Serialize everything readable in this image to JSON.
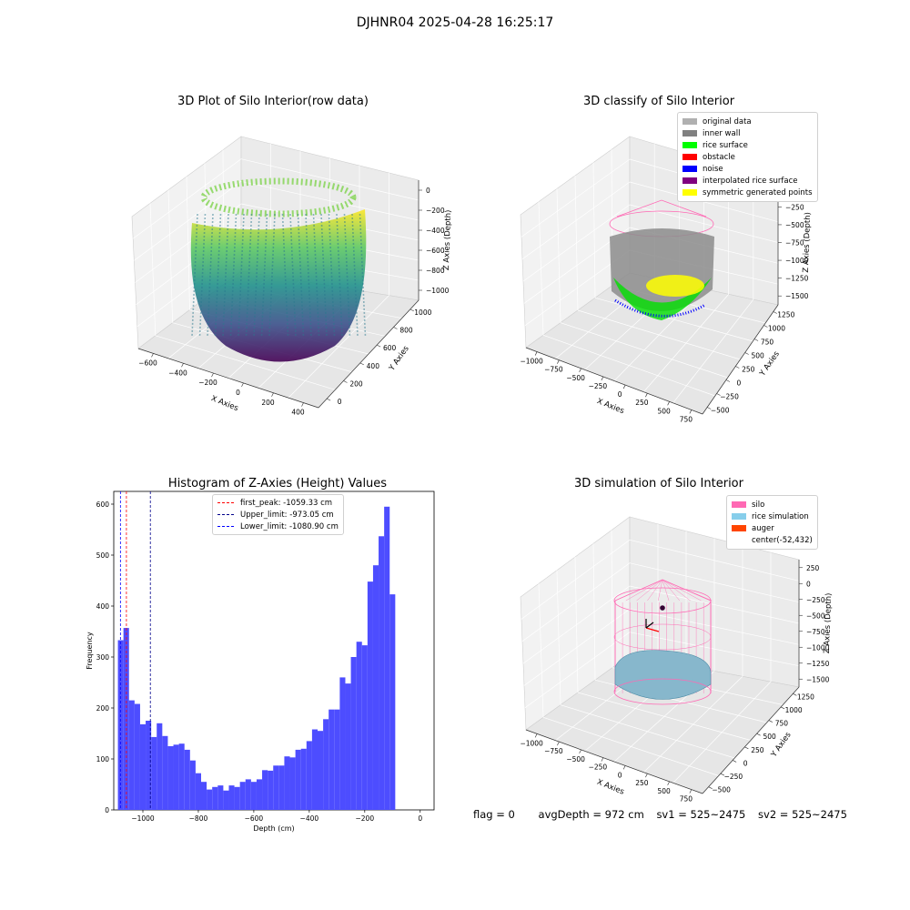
{
  "suptitle": "DJHNR04 2025-04-28 16:25:17",
  "footer": {
    "flag": "flag = 0",
    "avg_depth": "avgDepth = 972 cm",
    "sv1": "sv1 = 525~2475",
    "sv2": "sv2 = 525~2475"
  },
  "chart_data": [
    {
      "type": "scatter",
      "projection": "3d",
      "title": "3D Plot of Silo Interior(row data)",
      "xlabel": "X Axies",
      "ylabel": "Y Axies",
      "zlabel": "Z Axies (Depth)",
      "x_ticks": [
        "−600",
        "−400",
        "−200",
        "0",
        "200",
        "400"
      ],
      "y_ticks": [
        "0",
        "200",
        "400",
        "600",
        "800",
        "1000"
      ],
      "z_ticks": [
        "0",
        "−200",
        "−400",
        "−600",
        "−800",
        "−1000"
      ],
      "colormap": "viridis"
    },
    {
      "type": "scatter",
      "projection": "3d",
      "title": "3D classify of Silo Interior",
      "xlabel": "X Axies",
      "ylabel": "Y Axies",
      "zlabel": "Z Axies (Depth)",
      "x_ticks": [
        "−1000",
        "−750",
        "−500",
        "−250",
        "0",
        "250",
        "500",
        "750"
      ],
      "y_ticks": [
        "−500",
        "−250",
        "0",
        "250",
        "500",
        "750",
        "1000",
        "1250"
      ],
      "z_ticks": [
        "0",
        "−250",
        "−500",
        "−750",
        "−1000",
        "−1250",
        "−1500"
      ],
      "legend_position": "top-right",
      "legend": [
        {
          "label": "original data",
          "color": "#b0b0b0"
        },
        {
          "label": "inner wall",
          "color": "#808080"
        },
        {
          "label": "rice surface",
          "color": "#00ff00"
        },
        {
          "label": "obstacle",
          "color": "#ff0000"
        },
        {
          "label": "noise",
          "color": "#0000ff"
        },
        {
          "label": "interpolated rice surface",
          "color": "#800080"
        },
        {
          "label": "symmetric generated points",
          "color": "#ffff00"
        }
      ]
    },
    {
      "type": "bar",
      "title": "Histogram of Z-Axies (Height) Values",
      "xlabel": "Depth (cm)",
      "ylabel": "Frequency",
      "xlim": [
        -1105,
        50
      ],
      "ylim": [
        0,
        625
      ],
      "x_ticks": [
        -1000,
        -800,
        -600,
        -400,
        -200,
        0
      ],
      "y_ticks": [
        0,
        100,
        200,
        300,
        400,
        500,
        600
      ],
      "bar_color": "#4d4dff",
      "bin_start": -1090,
      "bin_width": 20,
      "values": [
        333,
        357,
        215,
        208,
        168,
        175,
        143,
        170,
        145,
        125,
        128,
        130,
        118,
        97,
        72,
        55,
        40,
        45,
        48,
        38,
        48,
        45,
        55,
        60,
        55,
        60,
        78,
        77,
        87,
        87,
        105,
        103,
        118,
        120,
        135,
        158,
        155,
        178,
        197,
        197,
        260,
        248,
        300,
        330,
        323,
        448,
        480,
        537,
        595,
        423
      ],
      "vlines": [
        {
          "label": "first_peak: -1059.33 cm",
          "x": -1059.33,
          "color": "#ff0000"
        },
        {
          "label": "Upper_limit: -973.05 cm",
          "x": -973.05,
          "color": "#00008b"
        },
        {
          "label": "Lower_limit: -1080.90 cm",
          "x": -1080.9,
          "color": "#0000ff"
        }
      ],
      "legend_position": "upper-center"
    },
    {
      "type": "scatter",
      "projection": "3d",
      "title": "3D simulation of Silo Interior",
      "xlabel": "X Axies",
      "ylabel": "Y Axies",
      "zlabel": "Z Axies (Depth)",
      "x_ticks": [
        "−1000",
        "−750",
        "−500",
        "−250",
        "0",
        "250",
        "500",
        "750"
      ],
      "y_ticks": [
        "−500",
        "−250",
        "0",
        "250",
        "500",
        "750",
        "1000",
        "1250"
      ],
      "z_ticks": [
        "250",
        "0",
        "−250",
        "−500",
        "−750",
        "−1000",
        "−1250",
        "−1500"
      ],
      "legend_position": "top-right",
      "legend": [
        {
          "label": "silo",
          "color": "#ff69b4"
        },
        {
          "label": "rice simulation",
          "color": "#87ceeb"
        },
        {
          "label": "auger",
          "color": "#ff4500"
        },
        {
          "label": "center(-52,432)",
          "color": ""
        }
      ]
    }
  ]
}
